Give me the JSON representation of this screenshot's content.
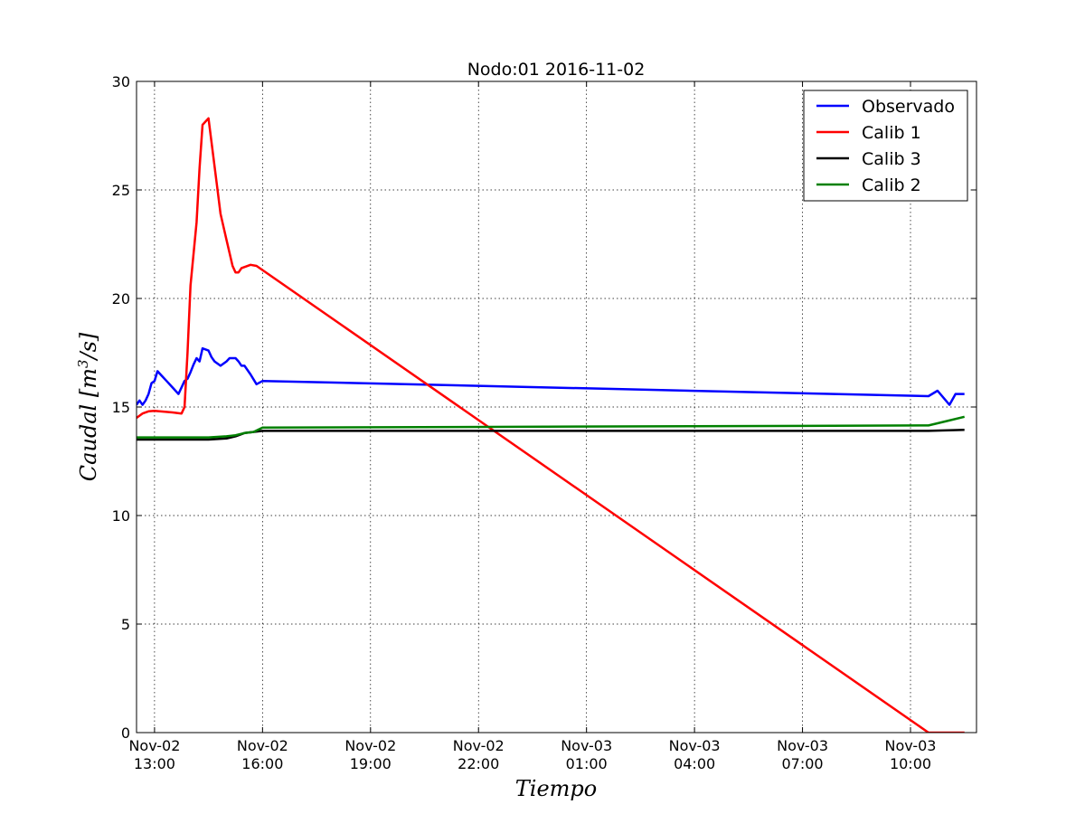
{
  "chart_data": {
    "type": "line",
    "title": "Nodo:01 2016-11-02",
    "xlabel": "Tiempo",
    "ylabel": "Caudal [m^3/s]",
    "ylim": [
      0,
      30
    ],
    "xlim": [
      "2016-11-02 12:30",
      "2016-11-03 11:50"
    ],
    "grid": true,
    "legend_position": "top-right",
    "yticks": [
      0,
      5,
      10,
      15,
      20,
      25,
      30
    ],
    "xticks": [
      {
        "at": "2016-11-02 13:00",
        "line1": "Nov-02",
        "line2": "13:00"
      },
      {
        "at": "2016-11-02 16:00",
        "line1": "Nov-02",
        "line2": "16:00"
      },
      {
        "at": "2016-11-02 19:00",
        "line1": "Nov-02",
        "line2": "19:00"
      },
      {
        "at": "2016-11-02 22:00",
        "line1": "Nov-02",
        "line2": "22:00"
      },
      {
        "at": "2016-11-03 01:00",
        "line1": "Nov-03",
        "line2": "01:00"
      },
      {
        "at": "2016-11-03 04:00",
        "line1": "Nov-03",
        "line2": "04:00"
      },
      {
        "at": "2016-11-03 07:00",
        "line1": "Nov-03",
        "line2": "07:00"
      },
      {
        "at": "2016-11-03 10:00",
        "line1": "Nov-03",
        "line2": "10:00"
      }
    ],
    "series": [
      {
        "name": "Observado",
        "color": "#0000ff",
        "points": [
          [
            "2016-11-02 12:30",
            15.1
          ],
          [
            "2016-11-02 12:35",
            15.3
          ],
          [
            "2016-11-02 12:40",
            15.1
          ],
          [
            "2016-11-02 12:45",
            15.3
          ],
          [
            "2016-11-02 12:50",
            15.6
          ],
          [
            "2016-11-02 12:55",
            16.1
          ],
          [
            "2016-11-02 13:00",
            16.2
          ],
          [
            "2016-11-02 13:05",
            16.65
          ],
          [
            "2016-11-02 13:10",
            16.5
          ],
          [
            "2016-11-02 13:20",
            16.2
          ],
          [
            "2016-11-02 13:30",
            15.9
          ],
          [
            "2016-11-02 13:40",
            15.6
          ],
          [
            "2016-11-02 13:50",
            16.2
          ],
          [
            "2016-11-02 13:55",
            16.3
          ],
          [
            "2016-11-02 14:00",
            16.6
          ],
          [
            "2016-11-02 14:05",
            16.95
          ],
          [
            "2016-11-02 14:10",
            17.25
          ],
          [
            "2016-11-02 14:15",
            17.1
          ],
          [
            "2016-11-02 14:20",
            17.7
          ],
          [
            "2016-11-02 14:30",
            17.6
          ],
          [
            "2016-11-02 14:35",
            17.3
          ],
          [
            "2016-11-02 14:40",
            17.1
          ],
          [
            "2016-11-02 14:50",
            16.9
          ],
          [
            "2016-11-02 15:00",
            17.1
          ],
          [
            "2016-11-02 15:05",
            17.25
          ],
          [
            "2016-11-02 15:15",
            17.25
          ],
          [
            "2016-11-02 15:20",
            17.1
          ],
          [
            "2016-11-02 15:25",
            16.9
          ],
          [
            "2016-11-02 15:30",
            16.9
          ],
          [
            "2016-11-02 15:40",
            16.5
          ],
          [
            "2016-11-02 15:50",
            16.05
          ],
          [
            "2016-11-02 16:00",
            16.2
          ],
          [
            "2016-11-03 10:30",
            15.5
          ],
          [
            "2016-11-03 10:45",
            15.75
          ],
          [
            "2016-11-03 11:05",
            15.1
          ],
          [
            "2016-11-03 11:15",
            15.6
          ],
          [
            "2016-11-03 11:30",
            15.6
          ]
        ]
      },
      {
        "name": "Calib 1",
        "color": "#ff0000",
        "points": [
          [
            "2016-11-02 12:30",
            14.5
          ],
          [
            "2016-11-02 12:40",
            14.7
          ],
          [
            "2016-11-02 12:50",
            14.8
          ],
          [
            "2016-11-02 13:00",
            14.82
          ],
          [
            "2016-11-02 13:30",
            14.75
          ],
          [
            "2016-11-02 13:45",
            14.7
          ],
          [
            "2016-11-02 13:50",
            15.0
          ],
          [
            "2016-11-02 13:55",
            17.5
          ],
          [
            "2016-11-02 14:00",
            20.6
          ],
          [
            "2016-11-02 14:10",
            23.5
          ],
          [
            "2016-11-02 14:15",
            26.0
          ],
          [
            "2016-11-02 14:20",
            28.0
          ],
          [
            "2016-11-02 14:30",
            28.3
          ],
          [
            "2016-11-02 14:45",
            25.0
          ],
          [
            "2016-11-02 14:50",
            23.9
          ],
          [
            "2016-11-02 15:00",
            22.7
          ],
          [
            "2016-11-02 15:10",
            21.5
          ],
          [
            "2016-11-02 15:15",
            21.2
          ],
          [
            "2016-11-02 15:20",
            21.2
          ],
          [
            "2016-11-02 15:25",
            21.4
          ],
          [
            "2016-11-02 15:40",
            21.55
          ],
          [
            "2016-11-02 15:50",
            21.5
          ],
          [
            "2016-11-03 10:30",
            0.0
          ],
          [
            "2016-11-03 11:30",
            0.0
          ]
        ]
      },
      {
        "name": "Calib 3",
        "color": "#000000",
        "points": [
          [
            "2016-11-02 12:30",
            13.5
          ],
          [
            "2016-11-02 14:30",
            13.5
          ],
          [
            "2016-11-02 15:00",
            13.55
          ],
          [
            "2016-11-02 15:15",
            13.65
          ],
          [
            "2016-11-02 15:30",
            13.8
          ],
          [
            "2016-11-02 16:00",
            13.9
          ],
          [
            "2016-11-03 10:30",
            13.9
          ],
          [
            "2016-11-03 11:30",
            13.95
          ]
        ]
      },
      {
        "name": "Calib 2",
        "color": "#008000",
        "points": [
          [
            "2016-11-02 12:30",
            13.6
          ],
          [
            "2016-11-02 14:30",
            13.6
          ],
          [
            "2016-11-02 15:00",
            13.65
          ],
          [
            "2016-11-02 15:15",
            13.7
          ],
          [
            "2016-11-02 15:30",
            13.8
          ],
          [
            "2016-11-02 15:45",
            13.85
          ],
          [
            "2016-11-02 16:00",
            14.05
          ],
          [
            "2016-11-03 10:30",
            14.15
          ],
          [
            "2016-11-03 10:45",
            14.25
          ],
          [
            "2016-11-03 11:00",
            14.35
          ],
          [
            "2016-11-03 11:30",
            14.55
          ]
        ]
      }
    ]
  }
}
